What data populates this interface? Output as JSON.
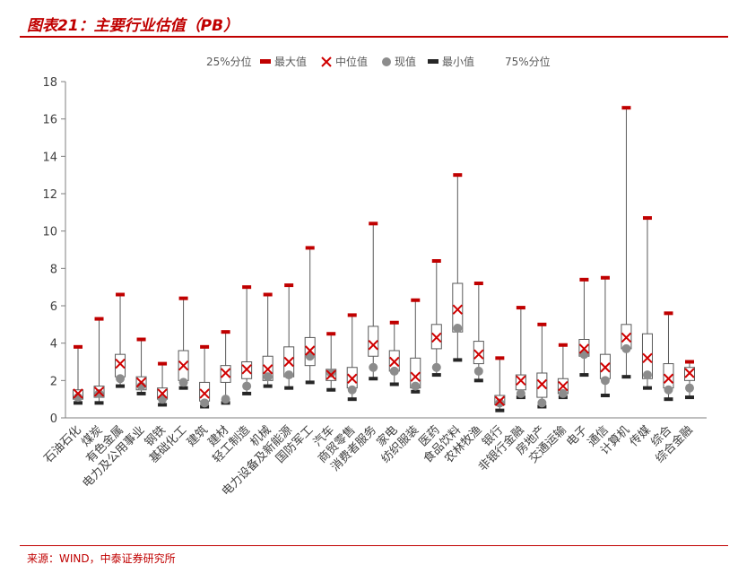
{
  "header": {
    "title": "图表21：主要行业估值（PB）"
  },
  "footer": {
    "source": "来源：WIND，中泰证券研究所"
  },
  "chart_data": {
    "type": "boxplot",
    "title": "图表21：主要行业估值（PB）",
    "ylim": [
      0,
      18
    ],
    "yticks": [
      0,
      2,
      4,
      6,
      8,
      10,
      12,
      14,
      16,
      18
    ],
    "legend": [
      "25%分位",
      "最大值",
      "中位值",
      "现值",
      "最小值",
      "75%分位"
    ],
    "legend_position": "top",
    "grid": false,
    "colors": {
      "max": "#c00000",
      "min": "#595959",
      "median": "#d00000",
      "current": "#8c8c8c",
      "box": "#595959"
    },
    "categories": [
      "石油石化",
      "煤炭",
      "有色金属",
      "电力及公用事业",
      "钢铁",
      "基础化工",
      "建筑",
      "建材",
      "轻工制造",
      "机械",
      "电力设备及新能源",
      "国防军工",
      "汽车",
      "商贸零售",
      "消费者服务",
      "家电",
      "纺织服装",
      "医药",
      "食品饮料",
      "农林牧渔",
      "银行",
      "非银行金融",
      "房地产",
      "交通运输",
      "电子",
      "通信",
      "计算机",
      "传媒",
      "综合",
      "综合金融"
    ],
    "max": [
      3.8,
      5.3,
      6.6,
      4.2,
      2.9,
      6.4,
      3.8,
      4.6,
      7.0,
      6.6,
      7.1,
      9.1,
      4.5,
      5.5,
      10.4,
      5.1,
      6.3,
      8.4,
      13.0,
      7.2,
      3.2,
      5.9,
      5.0,
      3.9,
      7.4,
      7.5,
      16.6,
      10.7,
      5.6,
      3.0
    ],
    "q75": [
      1.5,
      1.7,
      3.4,
      2.2,
      1.6,
      3.6,
      1.9,
      2.8,
      3.0,
      3.3,
      3.8,
      4.3,
      2.6,
      2.7,
      4.9,
      3.6,
      3.2,
      5.0,
      7.2,
      4.1,
      1.2,
      2.3,
      2.4,
      2.1,
      4.2,
      3.4,
      5.0,
      4.5,
      2.9,
      2.7
    ],
    "median": [
      1.3,
      1.4,
      2.9,
      1.9,
      1.3,
      2.8,
      1.3,
      2.4,
      2.6,
      2.6,
      3.0,
      3.6,
      2.3,
      2.1,
      3.9,
      3.0,
      2.2,
      4.3,
      5.8,
      3.4,
      0.9,
      2.0,
      1.8,
      1.7,
      3.7,
      2.7,
      4.3,
      3.2,
      2.1,
      2.4
    ],
    "q25": [
      1.0,
      1.1,
      2.2,
      1.5,
      1.0,
      2.0,
      0.9,
      1.9,
      2.1,
      2.0,
      2.2,
      2.8,
      2.0,
      1.6,
      3.3,
      2.5,
      1.6,
      3.7,
      4.6,
      2.9,
      0.7,
      1.5,
      1.1,
      1.3,
      3.3,
      2.1,
      3.7,
      2.1,
      1.6,
      2.0
    ],
    "min": [
      0.8,
      0.8,
      1.7,
      1.3,
      0.7,
      1.6,
      0.6,
      0.8,
      1.3,
      1.7,
      1.6,
      1.9,
      1.5,
      1.0,
      2.1,
      1.8,
      1.4,
      2.3,
      3.1,
      2.0,
      0.4,
      1.1,
      0.6,
      1.1,
      2.3,
      1.2,
      2.2,
      1.6,
      1.0,
      1.1
    ],
    "current": [
      1.1,
      1.3,
      2.1,
      1.7,
      1.0,
      1.9,
      0.8,
      1.0,
      1.7,
      2.2,
      2.3,
      3.3,
      2.4,
      1.5,
      2.7,
      2.5,
      1.7,
      2.7,
      4.8,
      2.5,
      0.8,
      1.3,
      0.8,
      1.3,
      3.4,
      2.0,
      3.7,
      2.3,
      1.5,
      1.6
    ]
  }
}
